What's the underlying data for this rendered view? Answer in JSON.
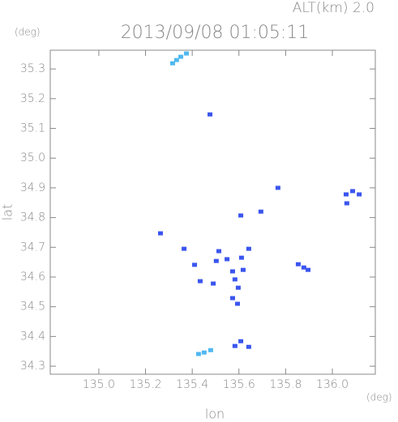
{
  "chart_data": {
    "type": "scatter",
    "alt_label": "ALT(km) 2.0",
    "title": "2013/09/08 01:05:11",
    "y_unit": "(deg)",
    "x_unit": "(deg)",
    "ylabel": "lat",
    "xlabel": "lon",
    "xlim": [
      134.792,
      136.184
    ],
    "ylim": [
      34.273,
      35.363
    ],
    "xticks": [
      {
        "value": 135,
        "label": "135.0"
      },
      135.2,
      135.4,
      135.6,
      135.8,
      {
        "value": 136,
        "label": "136.0"
      }
    ],
    "yticks": [
      35.3,
      35.2,
      35.1,
      {
        "value": 35,
        "label": "35.0"
      },
      34.9,
      34.8,
      34.7,
      34.6,
      34.5,
      34.4,
      34.3
    ],
    "series": [
      {
        "color": "#4fb8f0",
        "x": [
          135.316,
          135.333,
          135.351,
          135.375,
          135.427,
          135.451,
          135.479
        ],
        "values": [
          35.319,
          35.33,
          35.341,
          35.352,
          34.341,
          34.346,
          34.354
        ]
      },
      {
        "color": "#3a55ee",
        "x": [
          135.476,
          136.059,
          136.087,
          136.115,
          136.062,
          135.608,
          135.694,
          135.767,
          135.264,
          135.365,
          135.514,
          135.642,
          135.549,
          135.611,
          135.41,
          135.503,
          135.573,
          135.618,
          135.583,
          135.597,
          135.573,
          135.594,
          135.49,
          135.854,
          135.878,
          135.896,
          135.434,
          135.608,
          135.583,
          135.642
        ],
        "values": [
          35.147,
          34.878,
          34.889,
          34.878,
          34.848,
          34.807,
          34.82,
          34.9,
          34.747,
          34.695,
          34.687,
          34.695,
          34.66,
          34.665,
          34.641,
          34.654,
          34.619,
          34.624,
          34.592,
          34.564,
          34.529,
          34.51,
          34.578,
          34.643,
          34.632,
          34.624,
          34.586,
          34.384,
          34.368,
          34.365
        ]
      }
    ]
  }
}
